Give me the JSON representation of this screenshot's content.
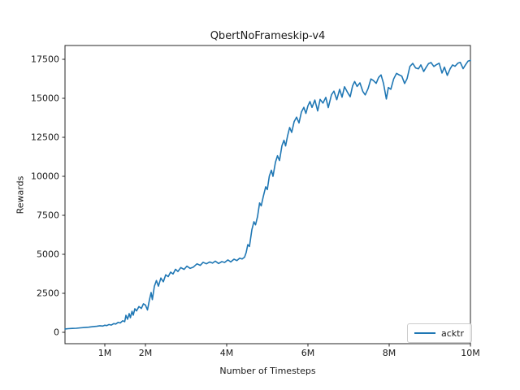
{
  "chart_data": {
    "type": "line",
    "title": "QbertNoFrameskip-v4",
    "xlabel": "Number of Timesteps",
    "ylabel": "Rewards",
    "grid": false,
    "legend_position": "lower right",
    "x_unit_suffix": "M",
    "xlim": [
      0.02,
      10
    ],
    "ylim": [
      -729,
      18385
    ],
    "x_ticks": [
      {
        "value": 1,
        "label": "1M"
      },
      {
        "value": 2,
        "label": "2M"
      },
      {
        "value": 4,
        "label": "4M"
      },
      {
        "value": 6,
        "label": "6M"
      },
      {
        "value": 8,
        "label": "8M"
      },
      {
        "value": 10,
        "label": "10M"
      }
    ],
    "y_ticks": [
      {
        "value": 0,
        "label": "0"
      },
      {
        "value": 2500,
        "label": "2500"
      },
      {
        "value": 5000,
        "label": "5000"
      },
      {
        "value": 7500,
        "label": "7500"
      },
      {
        "value": 10000,
        "label": "10000"
      },
      {
        "value": 12500,
        "label": "12500"
      },
      {
        "value": 15000,
        "label": "15000"
      },
      {
        "value": 17500,
        "label": "17500"
      }
    ],
    "theme": {
      "line_color": "#1f77b4",
      "text_color": "#1a1a1a",
      "spine_color": "#262626",
      "legend_border": "#cccccc",
      "background": "#ffffff"
    },
    "series": [
      {
        "name": "acktr",
        "color": "#1f77b4",
        "points": [
          [
            0.02,
            215
          ],
          [
            0.1,
            235
          ],
          [
            0.2,
            250
          ],
          [
            0.3,
            260
          ],
          [
            0.4,
            285
          ],
          [
            0.5,
            305
          ],
          [
            0.6,
            330
          ],
          [
            0.7,
            360
          ],
          [
            0.8,
            385
          ],
          [
            0.88,
            420
          ],
          [
            0.95,
            400
          ],
          [
            1.0,
            455
          ],
          [
            1.05,
            430
          ],
          [
            1.1,
            500
          ],
          [
            1.16,
            465
          ],
          [
            1.22,
            560
          ],
          [
            1.27,
            530
          ],
          [
            1.33,
            640
          ],
          [
            1.38,
            600
          ],
          [
            1.44,
            740
          ],
          [
            1.49,
            680
          ],
          [
            1.52,
            1090
          ],
          [
            1.56,
            840
          ],
          [
            1.6,
            1200
          ],
          [
            1.63,
            940
          ],
          [
            1.67,
            1350
          ],
          [
            1.7,
            1100
          ],
          [
            1.74,
            1510
          ],
          [
            1.78,
            1370
          ],
          [
            1.84,
            1650
          ],
          [
            1.9,
            1530
          ],
          [
            1.95,
            1830
          ],
          [
            2.0,
            1750
          ],
          [
            2.05,
            1430
          ],
          [
            2.1,
            2100
          ],
          [
            2.14,
            2550
          ],
          [
            2.17,
            2100
          ],
          [
            2.22,
            2950
          ],
          [
            2.27,
            3320
          ],
          [
            2.32,
            2960
          ],
          [
            2.38,
            3480
          ],
          [
            2.44,
            3240
          ],
          [
            2.5,
            3690
          ],
          [
            2.56,
            3570
          ],
          [
            2.62,
            3860
          ],
          [
            2.68,
            3740
          ],
          [
            2.74,
            4040
          ],
          [
            2.8,
            3900
          ],
          [
            2.87,
            4150
          ],
          [
            2.95,
            4030
          ],
          [
            3.02,
            4240
          ],
          [
            3.1,
            4100
          ],
          [
            3.18,
            4180
          ],
          [
            3.27,
            4390
          ],
          [
            3.35,
            4290
          ],
          [
            3.42,
            4490
          ],
          [
            3.5,
            4390
          ],
          [
            3.58,
            4510
          ],
          [
            3.65,
            4440
          ],
          [
            3.72,
            4560
          ],
          [
            3.8,
            4410
          ],
          [
            3.88,
            4530
          ],
          [
            3.95,
            4480
          ],
          [
            4.03,
            4640
          ],
          [
            4.1,
            4510
          ],
          [
            4.18,
            4690
          ],
          [
            4.25,
            4600
          ],
          [
            4.32,
            4750
          ],
          [
            4.38,
            4700
          ],
          [
            4.44,
            4820
          ],
          [
            4.48,
            5120
          ],
          [
            4.52,
            5620
          ],
          [
            4.56,
            5500
          ],
          [
            4.62,
            6580
          ],
          [
            4.67,
            7090
          ],
          [
            4.71,
            6890
          ],
          [
            4.76,
            7420
          ],
          [
            4.81,
            8290
          ],
          [
            4.85,
            8110
          ],
          [
            4.9,
            8690
          ],
          [
            4.96,
            9330
          ],
          [
            5.0,
            9150
          ],
          [
            5.05,
            10020
          ],
          [
            5.1,
            10390
          ],
          [
            5.14,
            10000
          ],
          [
            5.2,
            10900
          ],
          [
            5.25,
            11320
          ],
          [
            5.3,
            11010
          ],
          [
            5.36,
            11960
          ],
          [
            5.41,
            12310
          ],
          [
            5.45,
            11950
          ],
          [
            5.5,
            12610
          ],
          [
            5.55,
            13130
          ],
          [
            5.6,
            12820
          ],
          [
            5.66,
            13500
          ],
          [
            5.72,
            13790
          ],
          [
            5.78,
            13420
          ],
          [
            5.84,
            14130
          ],
          [
            5.9,
            14420
          ],
          [
            5.95,
            14030
          ],
          [
            6.0,
            14520
          ],
          [
            6.05,
            14790
          ],
          [
            6.1,
            14410
          ],
          [
            6.17,
            14890
          ],
          [
            6.24,
            14190
          ],
          [
            6.3,
            14930
          ],
          [
            6.37,
            14690
          ],
          [
            6.44,
            15060
          ],
          [
            6.5,
            14400
          ],
          [
            6.58,
            15230
          ],
          [
            6.64,
            15460
          ],
          [
            6.71,
            14910
          ],
          [
            6.78,
            15580
          ],
          [
            6.84,
            15070
          ],
          [
            6.9,
            15740
          ],
          [
            6.97,
            15400
          ],
          [
            7.04,
            15100
          ],
          [
            7.1,
            15800
          ],
          [
            7.15,
            16080
          ],
          [
            7.21,
            15760
          ],
          [
            7.28,
            15990
          ],
          [
            7.35,
            15450
          ],
          [
            7.41,
            15220
          ],
          [
            7.48,
            15620
          ],
          [
            7.55,
            16240
          ],
          [
            7.61,
            16140
          ],
          [
            7.68,
            15960
          ],
          [
            7.74,
            16340
          ],
          [
            7.8,
            16500
          ],
          [
            7.86,
            15960
          ],
          [
            7.93,
            14960
          ],
          [
            7.98,
            15690
          ],
          [
            8.04,
            15580
          ],
          [
            8.11,
            16240
          ],
          [
            8.18,
            16600
          ],
          [
            8.24,
            16510
          ],
          [
            8.31,
            16420
          ],
          [
            8.38,
            15950
          ],
          [
            8.44,
            16260
          ],
          [
            8.51,
            17040
          ],
          [
            8.58,
            17240
          ],
          [
            8.65,
            16950
          ],
          [
            8.72,
            16890
          ],
          [
            8.78,
            17140
          ],
          [
            8.85,
            16720
          ],
          [
            8.91,
            16990
          ],
          [
            8.97,
            17230
          ],
          [
            9.03,
            17290
          ],
          [
            9.1,
            17040
          ],
          [
            9.16,
            17150
          ],
          [
            9.23,
            17250
          ],
          [
            9.3,
            16620
          ],
          [
            9.36,
            17000
          ],
          [
            9.43,
            16470
          ],
          [
            9.5,
            16890
          ],
          [
            9.56,
            17140
          ],
          [
            9.62,
            17050
          ],
          [
            9.69,
            17250
          ],
          [
            9.75,
            17300
          ],
          [
            9.82,
            16900
          ],
          [
            9.88,
            17150
          ],
          [
            9.94,
            17380
          ],
          [
            10.0,
            17430
          ]
        ]
      }
    ]
  }
}
